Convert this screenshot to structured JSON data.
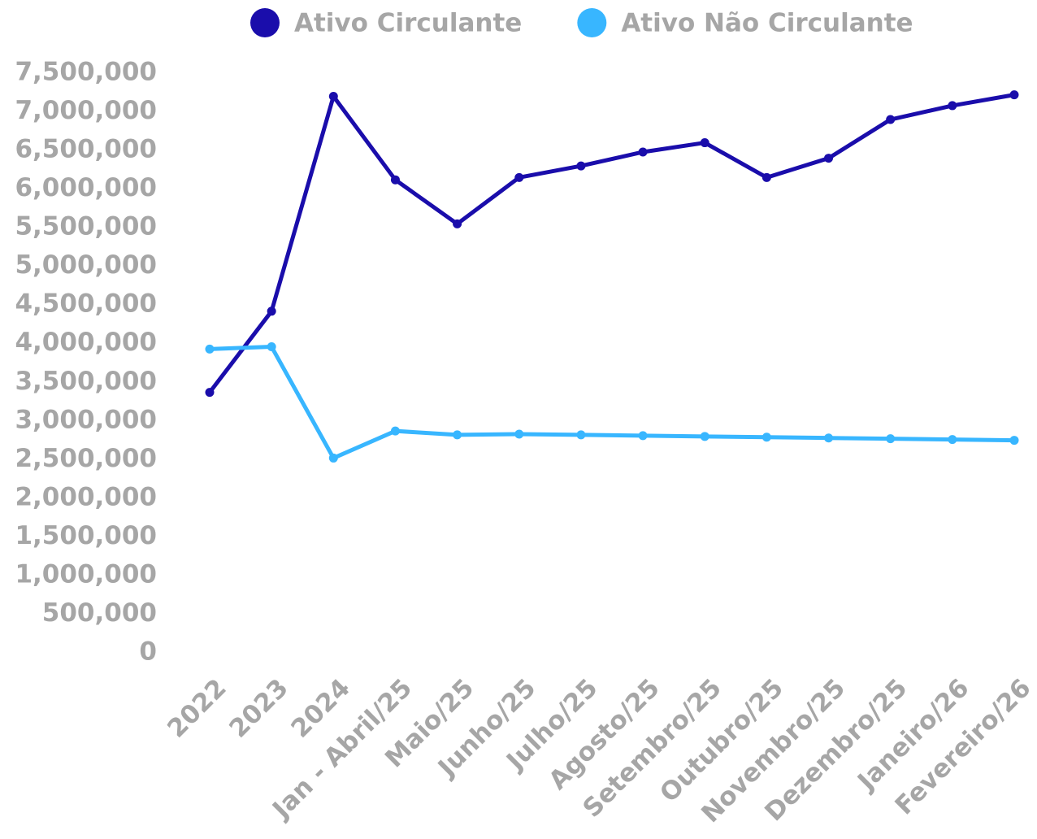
{
  "chart_data": {
    "type": "line",
    "categories": [
      "2022",
      "2023",
      "2024",
      "Jan - Abril/25",
      "Maio/25",
      "Junho/25",
      "Julho/25",
      "Agosto/25",
      "Setembro/25",
      "Outubro/25",
      "Novembro/25",
      "Dezembro/25",
      "Janeiro/26",
      "Fevereiro/26"
    ],
    "series": [
      {
        "name": "Ativo Circulante",
        "color": "#1a0dab",
        "values": [
          3370000,
          4420000,
          7200000,
          6120000,
          5550000,
          6150000,
          6300000,
          6480000,
          6600000,
          6150000,
          6400000,
          6900000,
          7080000,
          7220000
        ]
      },
      {
        "name": "Ativo Não Circulante",
        "color": "#38b6ff",
        "values": [
          3930000,
          3960000,
          2520000,
          2870000,
          2820000,
          2830000,
          2820000,
          2810000,
          2800000,
          2790000,
          2780000,
          2770000,
          2760000,
          2750000
        ]
      }
    ],
    "ylim": [
      0,
      7500000
    ],
    "yticks": [
      0,
      {
        "value": 500000,
        "label": "500,000"
      },
      {
        "value": 1000000,
        "label": "1,000,000"
      },
      {
        "value": 1500000,
        "label": "1,500,000"
      },
      {
        "value": 2000000,
        "label": "2,000,000"
      },
      {
        "value": 2500000,
        "label": "2,500,000"
      },
      {
        "value": 3000000,
        "label": "3,000,000"
      },
      {
        "value": 3500000,
        "label": "3,500,000"
      },
      {
        "value": 4000000,
        "label": "4,000,000"
      },
      {
        "value": 4500000,
        "label": "4,500,000"
      },
      {
        "value": 5000000,
        "label": "5,000,000"
      },
      {
        "value": 5500000,
        "label": "5,500,000"
      },
      {
        "value": 6000000,
        "label": "6,000,000"
      },
      {
        "value": 6500000,
        "label": "6,500,000"
      },
      {
        "value": 7000000,
        "label": "7,000,000"
      },
      {
        "value": 7500000,
        "label": "7,500,000"
      }
    ],
    "legend": "top",
    "grid": false
  }
}
